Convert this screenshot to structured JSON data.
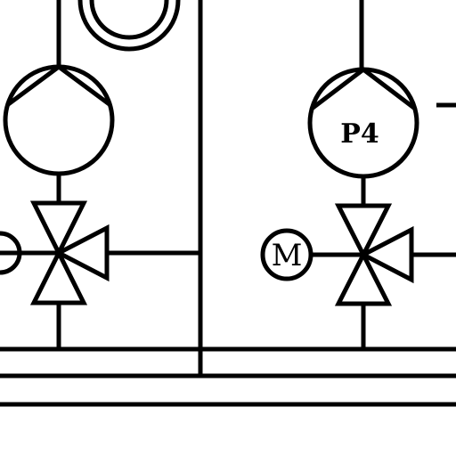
{
  "diagram": {
    "pumps": [
      {
        "label": ""
      },
      {
        "label": "P4"
      }
    ],
    "motor": {
      "label": "M"
    },
    "colors": {
      "line": "#000000",
      "background": "#ffffff"
    }
  }
}
